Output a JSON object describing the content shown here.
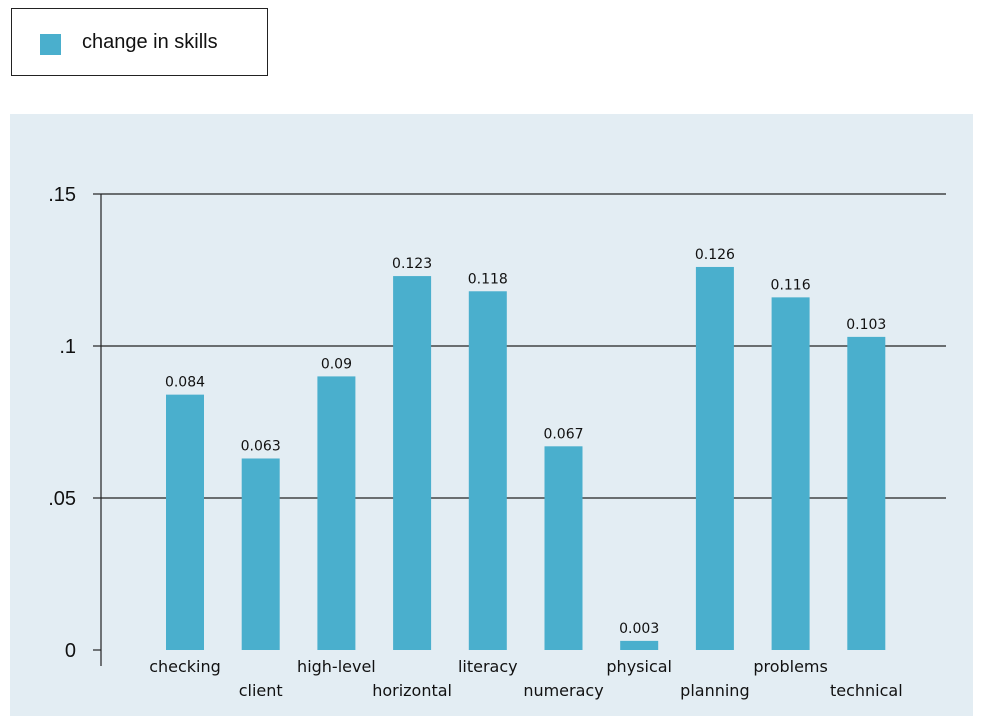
{
  "chart_data": {
    "type": "bar",
    "categories": [
      "checking",
      "client",
      "high-level",
      "horizontal",
      "literacy",
      "numeracy",
      "physical",
      "planning",
      "problems",
      "technical"
    ],
    "series": [
      {
        "name": "change in skills",
        "values": [
          0.084,
          0.063,
          0.09,
          0.123,
          0.118,
          0.067,
          0.003,
          0.126,
          0.116,
          0.103
        ],
        "labels": [
          "0.084",
          "0.063",
          "0.09",
          "0.123",
          "0.118",
          "0.067",
          "0.003",
          "0.126",
          "0.116",
          "0.103"
        ]
      }
    ],
    "yticks": [
      {
        "value": 0,
        "label": "0"
      },
      {
        "value": 0.05,
        "label": ".05"
      },
      {
        "value": 0.1,
        "label": ".1"
      },
      {
        "value": 0.15,
        "label": ".15"
      }
    ],
    "ylim": [
      0,
      0.15
    ],
    "grid": true,
    "legend_position": "top-left",
    "colors": {
      "bar": "#4aafcd",
      "panel": "#e3edf3",
      "grid": "#222222"
    }
  }
}
